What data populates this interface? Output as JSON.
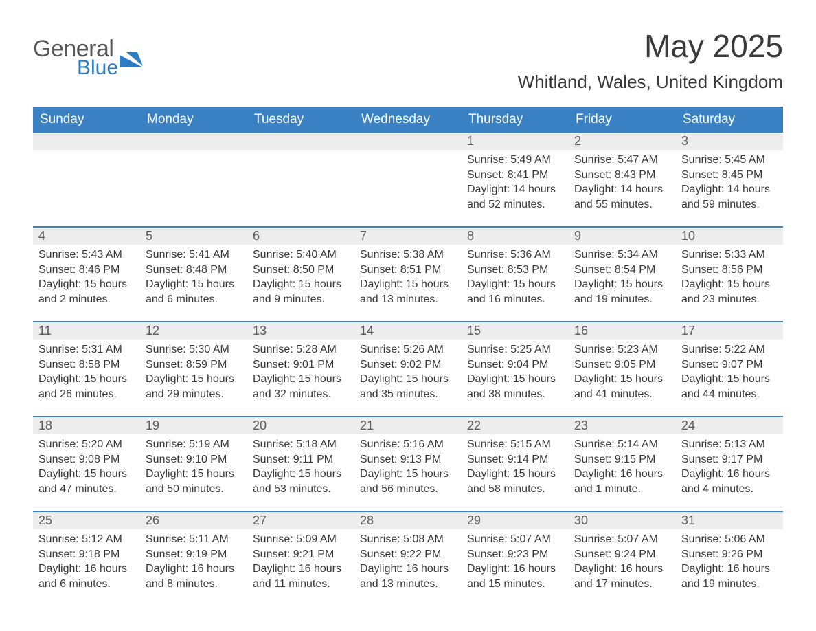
{
  "brand": {
    "word1": "General",
    "word2": "Blue",
    "accent_color": "#2e7cc2"
  },
  "title": "May 2025",
  "location": "Whitland, Wales, United Kingdom",
  "colors": {
    "header_bg": "#3a81c4",
    "header_text": "#ffffff",
    "row_accent": "#3a81c4",
    "daynum_bg": "#ededed",
    "body_text": "#3a3a3a",
    "page_bg": "#ffffff"
  },
  "weekdays": [
    "Sunday",
    "Monday",
    "Tuesday",
    "Wednesday",
    "Thursday",
    "Friday",
    "Saturday"
  ],
  "weeks": [
    [
      null,
      null,
      null,
      null,
      {
        "n": "1",
        "sunrise": "5:49 AM",
        "sunset": "8:41 PM",
        "daylight": "14 hours and 52 minutes."
      },
      {
        "n": "2",
        "sunrise": "5:47 AM",
        "sunset": "8:43 PM",
        "daylight": "14 hours and 55 minutes."
      },
      {
        "n": "3",
        "sunrise": "5:45 AM",
        "sunset": "8:45 PM",
        "daylight": "14 hours and 59 minutes."
      }
    ],
    [
      {
        "n": "4",
        "sunrise": "5:43 AM",
        "sunset": "8:46 PM",
        "daylight": "15 hours and 2 minutes."
      },
      {
        "n": "5",
        "sunrise": "5:41 AM",
        "sunset": "8:48 PM",
        "daylight": "15 hours and 6 minutes."
      },
      {
        "n": "6",
        "sunrise": "5:40 AM",
        "sunset": "8:50 PM",
        "daylight": "15 hours and 9 minutes."
      },
      {
        "n": "7",
        "sunrise": "5:38 AM",
        "sunset": "8:51 PM",
        "daylight": "15 hours and 13 minutes."
      },
      {
        "n": "8",
        "sunrise": "5:36 AM",
        "sunset": "8:53 PM",
        "daylight": "15 hours and 16 minutes."
      },
      {
        "n": "9",
        "sunrise": "5:34 AM",
        "sunset": "8:54 PM",
        "daylight": "15 hours and 19 minutes."
      },
      {
        "n": "10",
        "sunrise": "5:33 AM",
        "sunset": "8:56 PM",
        "daylight": "15 hours and 23 minutes."
      }
    ],
    [
      {
        "n": "11",
        "sunrise": "5:31 AM",
        "sunset": "8:58 PM",
        "daylight": "15 hours and 26 minutes."
      },
      {
        "n": "12",
        "sunrise": "5:30 AM",
        "sunset": "8:59 PM",
        "daylight": "15 hours and 29 minutes."
      },
      {
        "n": "13",
        "sunrise": "5:28 AM",
        "sunset": "9:01 PM",
        "daylight": "15 hours and 32 minutes."
      },
      {
        "n": "14",
        "sunrise": "5:26 AM",
        "sunset": "9:02 PM",
        "daylight": "15 hours and 35 minutes."
      },
      {
        "n": "15",
        "sunrise": "5:25 AM",
        "sunset": "9:04 PM",
        "daylight": "15 hours and 38 minutes."
      },
      {
        "n": "16",
        "sunrise": "5:23 AM",
        "sunset": "9:05 PM",
        "daylight": "15 hours and 41 minutes."
      },
      {
        "n": "17",
        "sunrise": "5:22 AM",
        "sunset": "9:07 PM",
        "daylight": "15 hours and 44 minutes."
      }
    ],
    [
      {
        "n": "18",
        "sunrise": "5:20 AM",
        "sunset": "9:08 PM",
        "daylight": "15 hours and 47 minutes."
      },
      {
        "n": "19",
        "sunrise": "5:19 AM",
        "sunset": "9:10 PM",
        "daylight": "15 hours and 50 minutes."
      },
      {
        "n": "20",
        "sunrise": "5:18 AM",
        "sunset": "9:11 PM",
        "daylight": "15 hours and 53 minutes."
      },
      {
        "n": "21",
        "sunrise": "5:16 AM",
        "sunset": "9:13 PM",
        "daylight": "15 hours and 56 minutes."
      },
      {
        "n": "22",
        "sunrise": "5:15 AM",
        "sunset": "9:14 PM",
        "daylight": "15 hours and 58 minutes."
      },
      {
        "n": "23",
        "sunrise": "5:14 AM",
        "sunset": "9:15 PM",
        "daylight": "16 hours and 1 minute."
      },
      {
        "n": "24",
        "sunrise": "5:13 AM",
        "sunset": "9:17 PM",
        "daylight": "16 hours and 4 minutes."
      }
    ],
    [
      {
        "n": "25",
        "sunrise": "5:12 AM",
        "sunset": "9:18 PM",
        "daylight": "16 hours and 6 minutes."
      },
      {
        "n": "26",
        "sunrise": "5:11 AM",
        "sunset": "9:19 PM",
        "daylight": "16 hours and 8 minutes."
      },
      {
        "n": "27",
        "sunrise": "5:09 AM",
        "sunset": "9:21 PM",
        "daylight": "16 hours and 11 minutes."
      },
      {
        "n": "28",
        "sunrise": "5:08 AM",
        "sunset": "9:22 PM",
        "daylight": "16 hours and 13 minutes."
      },
      {
        "n": "29",
        "sunrise": "5:07 AM",
        "sunset": "9:23 PM",
        "daylight": "16 hours and 15 minutes."
      },
      {
        "n": "30",
        "sunrise": "5:07 AM",
        "sunset": "9:24 PM",
        "daylight": "16 hours and 17 minutes."
      },
      {
        "n": "31",
        "sunrise": "5:06 AM",
        "sunset": "9:26 PM",
        "daylight": "16 hours and 19 minutes."
      }
    ]
  ],
  "labels": {
    "sunrise": "Sunrise: ",
    "sunset": "Sunset: ",
    "daylight": "Daylight: "
  }
}
